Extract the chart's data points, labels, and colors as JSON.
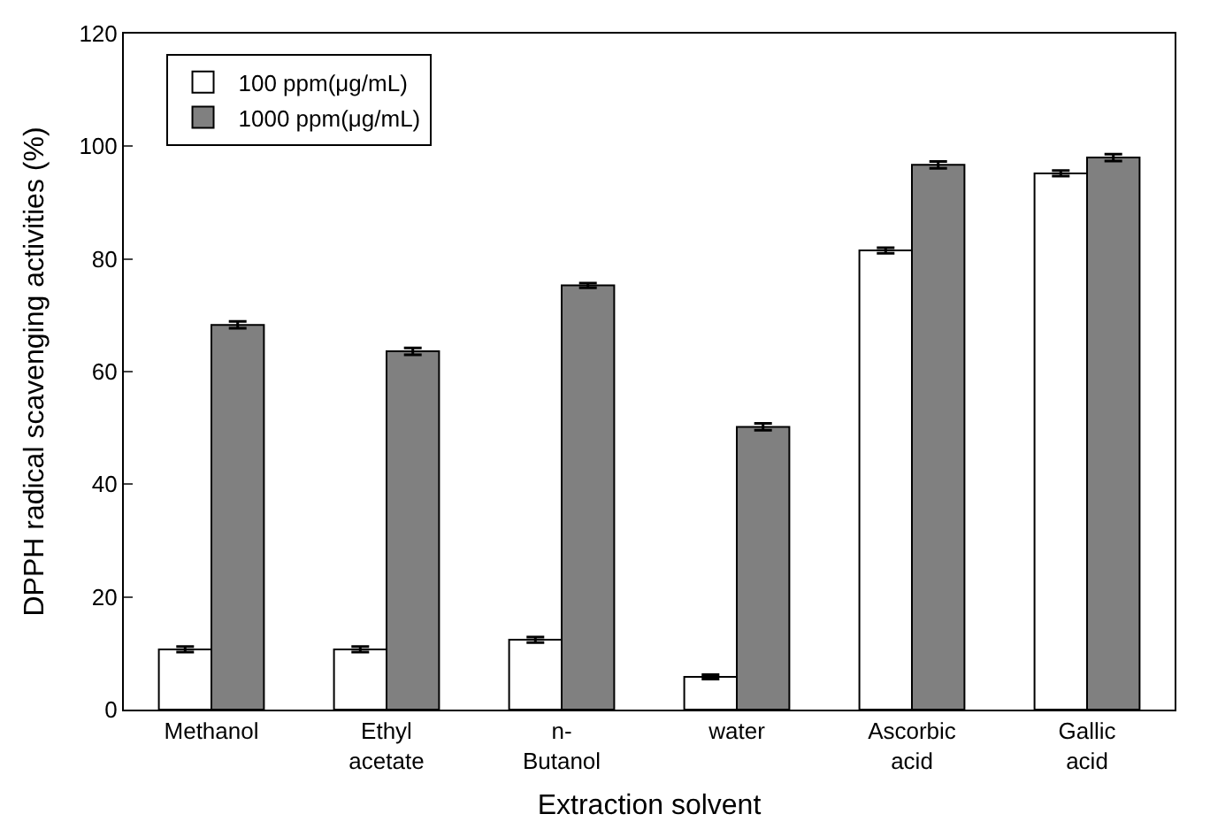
{
  "chart_data": {
    "type": "bar",
    "xlabel": "Extraction solvent",
    "ylabel": "DPPH radical scavenging activities (%)",
    "categories": [
      "Methanol",
      "Ethyl\nacetate",
      "n-\nButanol",
      "water",
      "Ascorbic\nacid",
      "Gallic\nacid"
    ],
    "series": [
      {
        "name": "100 ppm(μg/mL)",
        "color": "#ffffff",
        "values": [
          10.7,
          10.7,
          12.4,
          5.8,
          81.5,
          95.2
        ],
        "errors": [
          0.5,
          0.5,
          0.5,
          0.4,
          0.5,
          0.5
        ]
      },
      {
        "name": "1000 ppm(μg/mL)",
        "color": "#808080",
        "values": [
          68.3,
          63.6,
          75.3,
          50.2,
          96.7,
          98.0
        ],
        "errors": [
          0.6,
          0.6,
          0.4,
          0.6,
          0.6,
          0.6
        ]
      }
    ],
    "ylim": [
      0,
      120
    ],
    "yticks": [
      0,
      20,
      40,
      60,
      80,
      100,
      120
    ],
    "grid": false,
    "legend": "top left"
  }
}
